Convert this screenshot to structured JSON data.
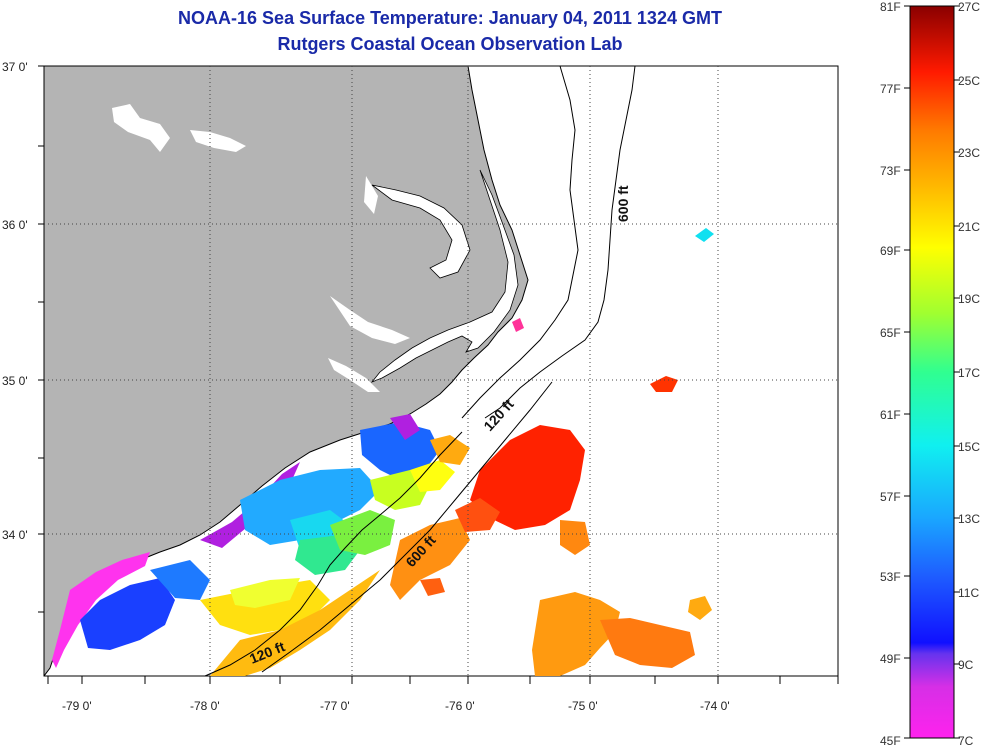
{
  "title": "NOAA-16 Sea Surface Temperature:  January 04, 2011 1324 GMT",
  "subtitle": "Rutgers Coastal Ocean Observation Lab",
  "map": {
    "lon_range": [
      -79.3,
      -73.2
    ],
    "lat_range": [
      33.1,
      37.0
    ],
    "lat_labels": [
      "37 0'",
      "36 0'",
      "35 0'",
      "34 0'"
    ],
    "lon_labels": [
      "-79 0'",
      "-78 0'",
      "-77 0'",
      "-76 0'",
      "-75 0'",
      "-74 0'"
    ],
    "contours": [
      {
        "label": "600 ft",
        "id": "c600a"
      },
      {
        "label": "120 ft",
        "id": "c120a"
      },
      {
        "label": "600 ft",
        "id": "c600b"
      },
      {
        "label": "120 ft",
        "id": "c120b"
      }
    ],
    "colors": {
      "land": "#b4b4b4",
      "ocean": "#ffffff",
      "grid": "#555555"
    }
  },
  "colorbar": {
    "f_labels": [
      "81F",
      "77F",
      "73F",
      "69F",
      "65F",
      "61F",
      "57F",
      "53F",
      "49F",
      "45F"
    ],
    "c_labels": [
      "27C",
      "25C",
      "23C",
      "21C",
      "19C",
      "17C",
      "15C",
      "13C",
      "11C",
      "9C",
      "7C"
    ]
  }
}
